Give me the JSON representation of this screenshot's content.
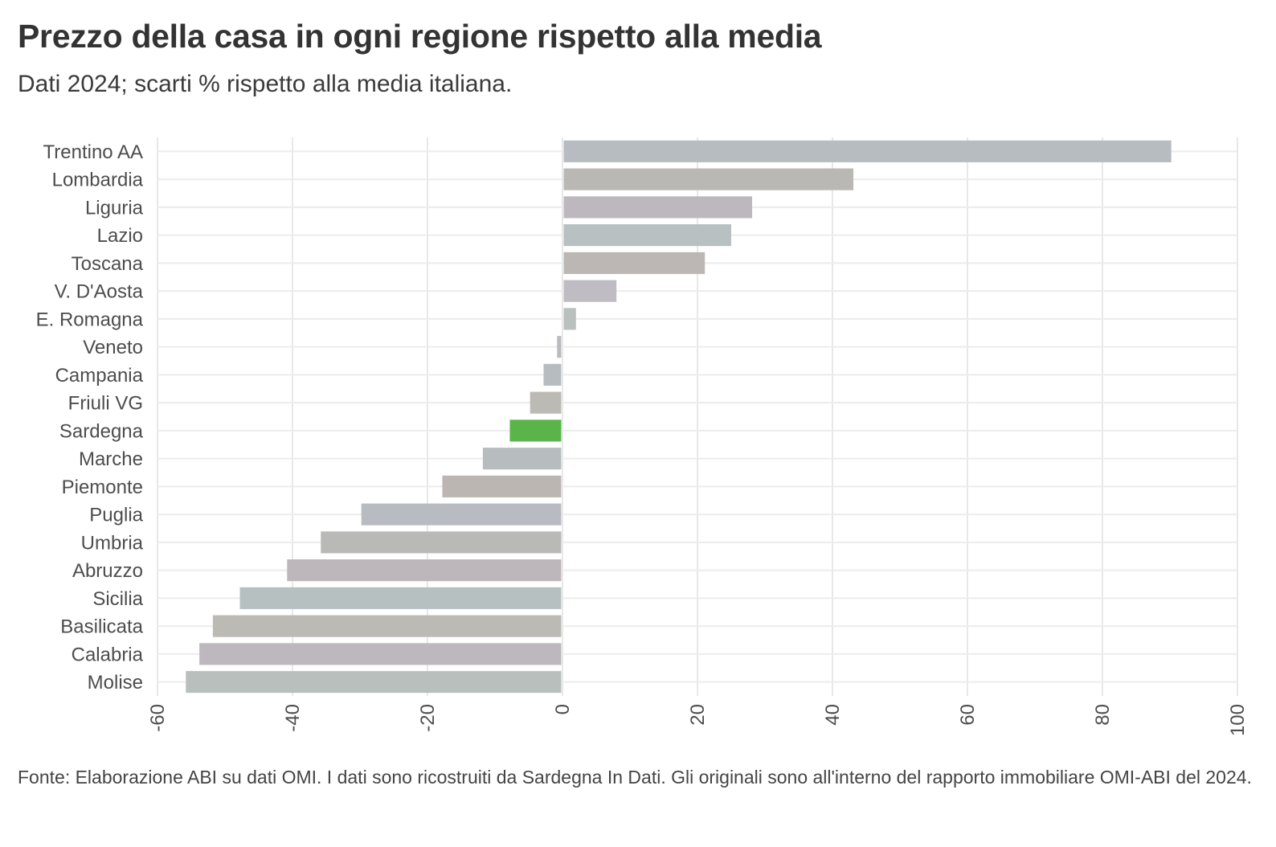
{
  "chart_data": {
    "type": "bar",
    "orientation": "horizontal",
    "title": "Prezzo della casa in ogni regione rispetto alla media",
    "subtitle": "Dati 2024; scarti % rispetto alla media italiana.",
    "xlabel": "",
    "ylabel": "",
    "xlim": [
      -60,
      100
    ],
    "xticks": [
      -60,
      -40,
      -20,
      0,
      20,
      40,
      60,
      80,
      100
    ],
    "xtick_labels": [
      "-60",
      "-40",
      "-20",
      "0",
      "20",
      "40",
      "60",
      "80",
      "100"
    ],
    "grid": true,
    "highlight": "Sardegna",
    "categories": [
      "Trentino AA",
      "Lombardia",
      "Liguria",
      "Lazio",
      "Toscana",
      "V. D'Aosta",
      "E. Romagna",
      "Veneto",
      "Campania",
      "Friuli VG",
      "Sardegna",
      "Marche",
      "Piemonte",
      "Puglia",
      "Umbria",
      "Abruzzo",
      "Sicilia",
      "Basilicata",
      "Calabria",
      "Molise"
    ],
    "values": [
      90.2,
      43.1,
      28.1,
      25.0,
      21.1,
      8.0,
      2.0,
      -0.8,
      -2.8,
      -4.8,
      -7.8,
      -11.8,
      -17.8,
      -29.8,
      -35.8,
      -40.8,
      -47.8,
      -51.8,
      -53.8,
      -55.8
    ],
    "colors": [
      "#b7bcc0",
      "#b9b8b5",
      "#bdb8bd",
      "#b8c0c1",
      "#bcb7b4",
      "#bfbcc3",
      "#bac0be",
      "#bdb9bf",
      "#b7bcc1",
      "#bbbab4",
      "#5ab44a",
      "#b7bdbf",
      "#bcb6b3",
      "#b8bbc1",
      "#b9b9b7",
      "#bdb7bb",
      "#b7c0c1",
      "#bcbab5",
      "#bdb8bd",
      "#b9bfbd"
    ]
  },
  "caption": "Fonte: Elaborazione ABI su dati OMI. I dati sono ricostruiti da Sardegna In Dati. Gli originali sono all'interno del rapporto immobiliare OMI-ABI del 2024."
}
